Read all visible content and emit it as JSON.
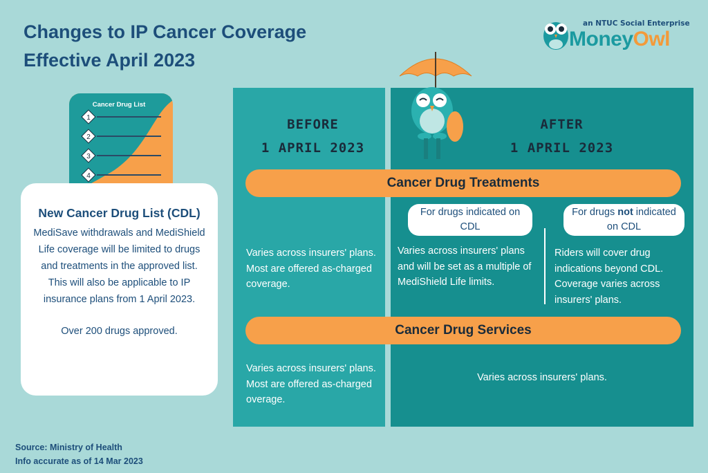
{
  "header": {
    "title_lines": [
      "Changes to IP Cancer Coverage",
      "Effective April 2023"
    ]
  },
  "logo": {
    "tagline": "an NTUC Social Enterprise",
    "brand_part1": "Money",
    "brand_part2": "Owl"
  },
  "cdl_icon": {
    "title": "Cancer Drug List",
    "items": [
      "1",
      "2",
      "3",
      "4"
    ]
  },
  "cdl_card": {
    "title": "New Cancer Drug List (CDL)",
    "paragraphs": [
      "MediSave withdrawals and MediShield Life coverage will be limited to drugs and treatments in the approved list.",
      "This will also be applicable to IP insurance plans from 1 April 2023."
    ],
    "note": "Over 200 drugs approved."
  },
  "columns": {
    "before": [
      "BEFORE",
      "1 APRIL 2023"
    ],
    "after": [
      "AFTER",
      "1 APRIL 2023"
    ]
  },
  "sections": [
    {
      "title": "Cancer Drug Treatments",
      "before": "Varies across insurers' plans. Most are offered as-charged coverage.",
      "after_cdl": {
        "label": "For drugs indicated on CDL",
        "text": "Varies across insurers' plans and will be set as a multiple of MediShield Life limits."
      },
      "after_non_cdl": {
        "label_parts": [
          "For drugs ",
          "not",
          " indicated on CDL"
        ],
        "text": "Riders will cover drug indications beyond CDL. Coverage varies across insurers' plans."
      }
    },
    {
      "title": "Cancer Drug Services",
      "before": "Varies across insurers' plans. Most are offered as-charged overage.",
      "after": "Varies across insurers' plans."
    }
  ],
  "footer": {
    "source": "Source: Ministry of Health",
    "accuracy": "Info accurate as of 14 Mar 2023"
  }
}
